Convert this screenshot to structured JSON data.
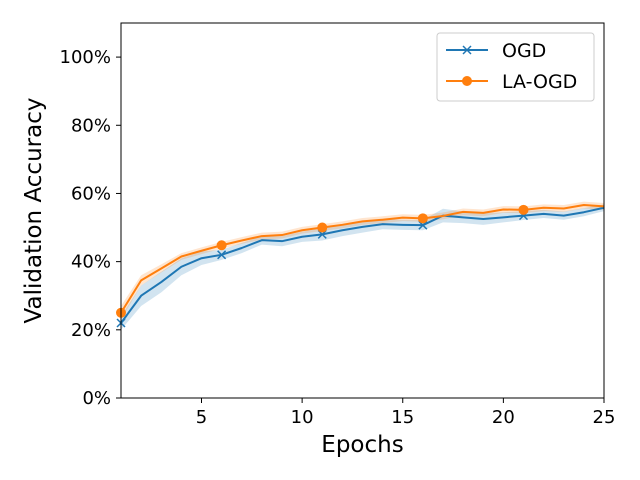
{
  "chart_data": {
    "type": "line",
    "xlabel": "Epochs",
    "ylabel": "Validation Accuracy",
    "xlim": [
      1,
      25
    ],
    "ylim": [
      0,
      110
    ],
    "x_ticks": [
      5,
      10,
      15,
      20,
      25
    ],
    "x_tick_labels": [
      "5",
      "10",
      "15",
      "20",
      "25"
    ],
    "y_ticks": [
      0,
      20,
      40,
      60,
      80,
      100
    ],
    "y_tick_labels": [
      "0%",
      "20%",
      "40%",
      "60%",
      "80%",
      "100%"
    ],
    "legend_position": "top-right",
    "grid": false,
    "x": [
      1,
      2,
      3,
      4,
      5,
      6,
      7,
      8,
      9,
      10,
      11,
      12,
      13,
      14,
      15,
      16,
      17,
      18,
      19,
      20,
      21,
      22,
      23,
      24,
      25
    ],
    "series": [
      {
        "name": "OGD",
        "color": "#1f77b4",
        "marker": "x",
        "marker_every_x": [
          1,
          6,
          11,
          16,
          21
        ],
        "values": [
          22,
          30,
          34,
          38.5,
          41,
          42,
          44,
          46.3,
          46,
          47.3,
          48,
          49.2,
          50.2,
          51,
          50.8,
          50.7,
          53.5,
          53,
          52.5,
          53,
          53.5,
          54,
          53.5,
          54.5,
          55.8
        ],
        "band_lower": [
          20,
          27,
          31,
          36,
          39,
          40.5,
          42.5,
          45,
          44.5,
          45.8,
          46.2,
          47.5,
          48.5,
          49.5,
          49.3,
          49.2,
          51.5,
          51.3,
          50.8,
          51.5,
          52.2,
          52.8,
          52.3,
          53.3,
          54.8
        ],
        "band_upper": [
          24,
          33,
          37,
          41,
          43,
          43.5,
          45.5,
          47.5,
          47.5,
          48.8,
          49.8,
          51,
          52,
          52.5,
          52.3,
          52.2,
          55.5,
          54.7,
          54.2,
          54.5,
          54.8,
          55.2,
          54.7,
          55.7,
          56.8
        ]
      },
      {
        "name": "LA-OGD",
        "color": "#ff7f0e",
        "marker": "o",
        "marker_every_x": [
          1,
          6,
          11,
          16,
          21
        ],
        "values": [
          25,
          34.5,
          38,
          41.5,
          43.2,
          44.8,
          46.2,
          47.5,
          47.8,
          49.2,
          50,
          50.8,
          51.8,
          52.3,
          52.9,
          52.7,
          53.4,
          54.6,
          54.3,
          55.3,
          55.2,
          55.8,
          55.6,
          56.6,
          56.2
        ],
        "band_lower": [
          23,
          33,
          36.8,
          40.5,
          42.2,
          43.8,
          45.2,
          46.5,
          46.8,
          48.2,
          49,
          49.8,
          50.8,
          51.3,
          51.9,
          51.7,
          52.4,
          53.6,
          53.3,
          54.3,
          54.2,
          54.8,
          54.6,
          55.6,
          55.2
        ],
        "band_upper": [
          27,
          36,
          39.2,
          42.5,
          44.2,
          45.8,
          47.2,
          48.5,
          48.8,
          50.2,
          51,
          51.8,
          52.8,
          53.3,
          53.9,
          53.7,
          54.4,
          55.6,
          55.3,
          56.3,
          56.2,
          56.8,
          56.6,
          57.6,
          57.2
        ]
      }
    ]
  }
}
